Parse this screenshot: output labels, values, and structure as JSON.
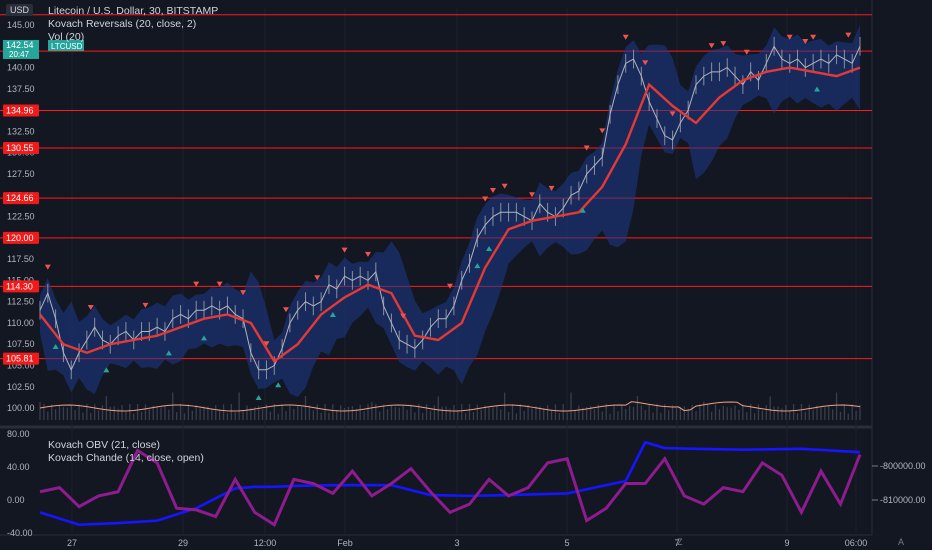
{
  "legend": {
    "main_title": "Litecoin / U.S. Dollar, 30, BITSTAMP",
    "indicator_1": "Kovach Reversals (20, close, 2)",
    "indicator_2": "Vol (20)",
    "sub_indicator_1": "Kovach OBV (21, close)",
    "sub_indicator_2": "Kovach Chande (14, close, open)"
  },
  "currency_badge": "USD",
  "symbol_tag": "LTCUSD",
  "last_price_label": "142.54",
  "countdown_label": "20:47",
  "bottom_icons": {
    "timezone": "Z",
    "scale_auto": "A"
  },
  "colors": {
    "background": "#131722",
    "price_line": "#b2b5be",
    "band_fill": "#1e3a8a",
    "ma_line": "#e53935",
    "level_line": "#ff1a1a",
    "up_arrow": "#26a69a",
    "down_arrow": "#ef5350",
    "volume": "#f0a080",
    "obv_line": "#1515ff",
    "chande_line": "#8e1c8e",
    "last_price_tag": "#26a69a"
  },
  "chart_data": [
    {
      "type": "line",
      "title": "Litecoin / U.S. Dollar, 30, BITSTAMP",
      "x_tick_labels": [
        "27",
        "29",
        "12:00",
        "Feb",
        "3",
        "5",
        "7",
        "9",
        "06:00"
      ],
      "y_tick_labels": [
        "100.00",
        "102.50",
        "105.00",
        "107.50",
        "110.00",
        "112.50",
        "115.00",
        "117.50",
        "120.00",
        "122.50",
        "125.00",
        "127.50",
        "130.00",
        "132.50",
        "135.00",
        "137.50",
        "140.00",
        "142.50",
        "145.00"
      ],
      "ylim": [
        98.6,
        147.0
      ],
      "horizontal_levels": [
        105.81,
        114.3,
        120.0,
        124.66,
        130.55,
        134.96,
        141.94,
        146.2
      ],
      "series": [
        {
          "name": "LTCUSD",
          "x": [
            0,
            4,
            8,
            12,
            16,
            20,
            24,
            28,
            32,
            36,
            40,
            44,
            48,
            52,
            56,
            60,
            64,
            68,
            72,
            76,
            80,
            84,
            88,
            92,
            96,
            100,
            104,
            108,
            112,
            116,
            120,
            124,
            128,
            132,
            136,
            140,
            144,
            148,
            152,
            156,
            160,
            164,
            168,
            172,
            176,
            180,
            184,
            188,
            192,
            196,
            200,
            204,
            208,
            212,
            216,
            220,
            224,
            228,
            232,
            236,
            240,
            244,
            248,
            252,
            256,
            260,
            264,
            268,
            272,
            276,
            280,
            284,
            288,
            292,
            296,
            300,
            304,
            308,
            312,
            316,
            320,
            324,
            328,
            332,
            336,
            340,
            344,
            348,
            352,
            356,
            360,
            364,
            368,
            372,
            376,
            380,
            384,
            388,
            392,
            396,
            400,
            404,
            408,
            412,
            416,
            420
          ],
          "values": [
            111.5,
            113.5,
            110.5,
            106.5,
            104.5,
            106.5,
            108.0,
            109.5,
            108.0,
            107.5,
            108.5,
            109.0,
            108.0,
            109.0,
            109.0,
            109.5,
            109.0,
            110.5,
            111.0,
            110.5,
            111.5,
            111.5,
            112.0,
            111.5,
            112.0,
            111.0,
            110.5,
            106.5,
            104.5,
            104.5,
            105.0,
            107.0,
            110.0,
            111.5,
            112.5,
            112.0,
            112.5,
            114.5,
            114.0,
            115.5,
            115.0,
            115.5,
            115.0,
            116.0,
            112.0,
            110.0,
            108.0,
            107.5,
            107.0,
            108.0,
            109.5,
            110.5,
            110.5,
            112.0,
            115.0,
            117.0,
            120.0,
            121.5,
            122.5,
            123.0,
            123.0,
            123.0,
            122.5,
            122.0,
            124.0,
            123.0,
            122.5,
            123.5,
            125.0,
            125.5,
            127.5,
            128.5,
            129.5,
            134.5,
            138.0,
            140.5,
            141.0,
            139.0,
            136.0,
            134.0,
            132.0,
            131.5,
            133.5,
            135.0,
            138.0,
            139.0,
            139.5,
            139.5,
            140.0,
            139.0,
            138.0,
            139.5,
            138.5,
            140.5,
            142.5,
            141.0,
            140.5,
            141.0,
            140.0,
            140.5,
            141.0,
            140.5,
            141.5,
            141.0,
            140.5,
            142.5
          ]
        },
        {
          "name": "Kovach Reversals basis",
          "x": [
            0,
            12,
            24,
            36,
            48,
            60,
            72,
            84,
            96,
            108,
            120,
            132,
            144,
            156,
            168,
            180,
            192,
            204,
            216,
            228,
            240,
            252,
            264,
            276,
            288,
            300,
            312,
            324,
            336,
            348,
            360,
            372,
            384,
            396,
            408,
            420
          ],
          "values": [
            111.0,
            107.5,
            106.5,
            107.5,
            108.0,
            108.5,
            109.5,
            110.5,
            111.0,
            110.0,
            105.5,
            107.5,
            111.0,
            113.0,
            114.5,
            113.5,
            108.5,
            108.0,
            110.0,
            116.5,
            121.0,
            122.0,
            122.5,
            123.0,
            126.0,
            131.0,
            138.0,
            135.5,
            133.5,
            136.5,
            138.5,
            139.5,
            140.0,
            139.5,
            139.0,
            140.0
          ]
        }
      ]
    },
    {
      "type": "bar",
      "title": "Vol (20)",
      "note": "volume histogram in bottom strip of the price pane"
    },
    {
      "type": "line",
      "title": "Kovach OBV / Kovach Chande",
      "left_y_tick_labels": [
        "80.00",
        "40.00",
        "0.00",
        "-40.00"
      ],
      "right_y_tick_labels": [
        "-800000.00",
        "-810000.00"
      ],
      "ylim": [
        -40,
        80
      ],
      "series": [
        {
          "name": "Kovach OBV (21, close)",
          "x": [
            0,
            20,
            40,
            60,
            80,
            100,
            110,
            120,
            130,
            150,
            180,
            200,
            220,
            240,
            270,
            300,
            310,
            320,
            335,
            360,
            390,
            420
          ],
          "values": [
            -15,
            -30,
            -28,
            -25,
            -10,
            14,
            16,
            16,
            17,
            18,
            18,
            6,
            5,
            6,
            8,
            23,
            70,
            63,
            62,
            61,
            62,
            58
          ]
        },
        {
          "name": "Kovach Chande (14, close, open)",
          "x": [
            0,
            10,
            20,
            30,
            40,
            50,
            60,
            70,
            80,
            90,
            100,
            110,
            120,
            130,
            140,
            150,
            160,
            170,
            180,
            190,
            200,
            210,
            220,
            230,
            240,
            250,
            260,
            270,
            280,
            290,
            300,
            310,
            320,
            330,
            340,
            350,
            360,
            370,
            380,
            390,
            400,
            410,
            420
          ],
          "values": [
            10,
            15,
            -8,
            5,
            10,
            60,
            45,
            -10,
            -12,
            -20,
            25,
            -15,
            -30,
            25,
            20,
            8,
            35,
            5,
            20,
            38,
            10,
            -15,
            -5,
            25,
            5,
            15,
            45,
            50,
            -25,
            -10,
            20,
            20,
            50,
            5,
            -5,
            15,
            10,
            45,
            30,
            -15,
            35,
            -5,
            55
          ]
        }
      ]
    }
  ]
}
